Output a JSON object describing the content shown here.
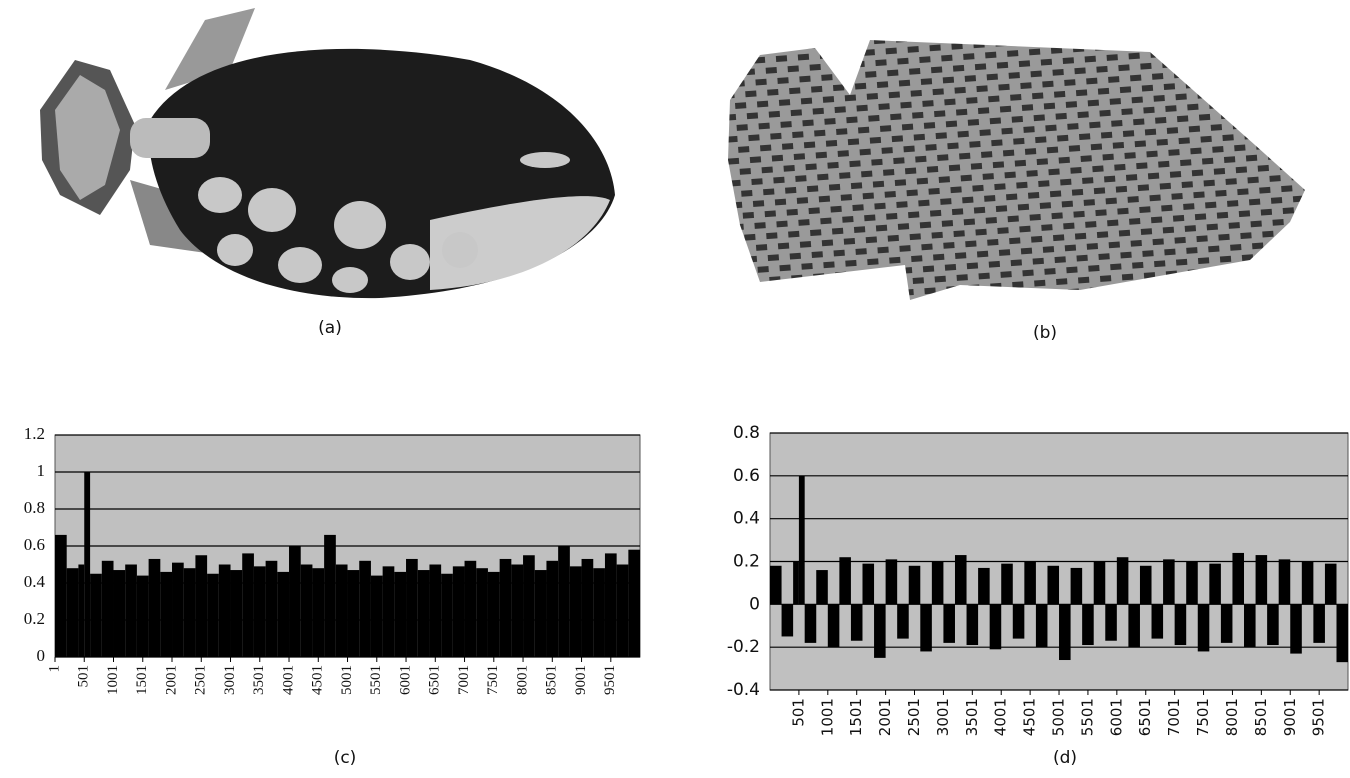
{
  "figures": {
    "a": {
      "caption": "(a)"
    },
    "b": {
      "caption": "(b)"
    }
  },
  "chart_data": [
    {
      "type": "bar",
      "caption": "(c)",
      "color": "#000000",
      "background": "#c0c0c0",
      "grid": true,
      "x": [
        1,
        201,
        401,
        501,
        601,
        801,
        1001,
        1201,
        1401,
        1601,
        1801,
        2001,
        2201,
        2401,
        2601,
        2801,
        3001,
        3201,
        3401,
        3601,
        3801,
        4001,
        4201,
        4401,
        4601,
        4801,
        5001,
        5201,
        5401,
        5601,
        5801,
        6001,
        6201,
        6401,
        6601,
        6801,
        7001,
        7201,
        7401,
        7601,
        7801,
        8001,
        8201,
        8401,
        8601,
        8801,
        9001,
        9201,
        9401,
        9601,
        9801
      ],
      "values": [
        0.66,
        0.48,
        0.5,
        1,
        0.45,
        0.52,
        0.47,
        0.5,
        0.44,
        0.53,
        0.46,
        0.51,
        0.48,
        0.55,
        0.45,
        0.5,
        0.47,
        0.56,
        0.49,
        0.52,
        0.46,
        0.6,
        0.5,
        0.48,
        0.66,
        0.5,
        0.47,
        0.52,
        0.44,
        0.49,
        0.46,
        0.53,
        0.47,
        0.5,
        0.45,
        0.49,
        0.52,
        0.48,
        0.46,
        0.53,
        0.5,
        0.55,
        0.47,
        0.52,
        0.6,
        0.49,
        0.53,
        0.48,
        0.56,
        0.5,
        0.58
      ],
      "xlim": [
        1,
        10000
      ],
      "xticks": [
        1,
        501,
        1001,
        1501,
        2001,
        2501,
        3001,
        3501,
        4001,
        4501,
        5001,
        5501,
        6001,
        6501,
        7001,
        7501,
        8001,
        8501,
        9001,
        9501
      ],
      "ylim": [
        0,
        1.2
      ],
      "yticks": [
        0,
        0.2,
        0.4,
        0.6,
        0.8,
        1,
        1.2
      ]
    },
    {
      "type": "bar",
      "caption": "(d)",
      "color": "#000000",
      "background": "#c0c0c0",
      "grid": true,
      "x": [
        1,
        201,
        401,
        501,
        601,
        801,
        1001,
        1201,
        1401,
        1601,
        1801,
        2001,
        2201,
        2401,
        2601,
        2801,
        3001,
        3201,
        3401,
        3601,
        3801,
        4001,
        4201,
        4401,
        4601,
        4801,
        5001,
        5201,
        5401,
        5601,
        5801,
        6001,
        6201,
        6401,
        6601,
        6801,
        7001,
        7201,
        7401,
        7601,
        7801,
        8001,
        8201,
        8401,
        8601,
        8801,
        9001,
        9201,
        9401,
        9601,
        9801
      ],
      "values": [
        0.18,
        -0.15,
        0.2,
        0.6,
        -0.18,
        0.16,
        -0.2,
        0.22,
        -0.17,
        0.19,
        -0.25,
        0.21,
        -0.16,
        0.18,
        -0.22,
        0.2,
        -0.18,
        0.23,
        -0.19,
        0.17,
        -0.21,
        0.19,
        -0.16,
        0.2,
        -0.2,
        0.18,
        -0.26,
        0.17,
        -0.19,
        0.2,
        -0.17,
        0.22,
        -0.2,
        0.18,
        -0.16,
        0.21,
        -0.19,
        0.2,
        -0.22,
        0.19,
        -0.18,
        0.24,
        -0.2,
        0.23,
        -0.19,
        0.21,
        -0.23,
        0.2,
        -0.18,
        0.19,
        -0.27
      ],
      "xlim": [
        1,
        10000
      ],
      "xticks": [
        501,
        1001,
        1501,
        2001,
        2501,
        3001,
        3501,
        4001,
        4501,
        5001,
        5501,
        6001,
        6501,
        7001,
        7501,
        8001,
        8501,
        9001,
        9501
      ],
      "ylim": [
        -0.4,
        0.8
      ],
      "yticks": [
        -0.4,
        -0.2,
        0,
        0.2,
        0.4,
        0.6,
        0.8
      ]
    }
  ]
}
